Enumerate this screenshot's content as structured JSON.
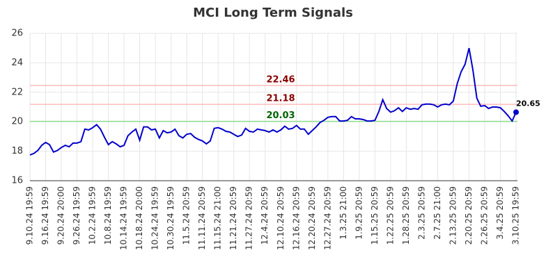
{
  "chart_data": {
    "type": "line",
    "title": "MCI Long Term Signals",
    "categories": [
      "9.10.24 19:59",
      null,
      null,
      null,
      "9.16.24 19:59",
      null,
      null,
      null,
      "9.20.24 20:00",
      null,
      null,
      null,
      "9.26.24 19:59",
      null,
      null,
      null,
      "10.2.24 19:59",
      null,
      null,
      null,
      "10.8.24 19:59",
      null,
      null,
      null,
      "10.14.24 19:59",
      null,
      null,
      null,
      "10.18.24 20:00",
      null,
      null,
      null,
      "10.24.24 19:59",
      null,
      null,
      null,
      "10.30.24 19:59",
      null,
      null,
      null,
      "11.5.24 20:59",
      null,
      null,
      null,
      "11.11.24 20:59",
      null,
      null,
      null,
      "11.15.24 21:00",
      null,
      null,
      null,
      "11.21.24 20:59",
      null,
      null,
      null,
      "11.27.24 20:59",
      null,
      null,
      null,
      "12.4.24 20:59",
      null,
      null,
      null,
      "12.10.24 20:59",
      null,
      null,
      null,
      "12.16.24 20:59",
      null,
      null,
      null,
      "12.20.24 20:59",
      null,
      null,
      null,
      "12.27.24 20:59",
      null,
      null,
      null,
      "1.3.25 21:00",
      null,
      null,
      null,
      "1.9.25 20:59",
      null,
      null,
      null,
      "1.15.25 20:59",
      null,
      null,
      null,
      "1.22.25 20:59",
      null,
      null,
      null,
      "1.28.25 20:59",
      null,
      null,
      null,
      "2.3.25 20:59",
      null,
      null,
      null,
      "2.7.25 21:00",
      null,
      null,
      null,
      "2.13.25 20:59",
      null,
      null,
      null,
      "2.20.25 20:59",
      null,
      null,
      null,
      "2.26.25 20:59",
      null,
      null,
      null,
      "3.4.25 20:59",
      null,
      null,
      null,
      "3.10.25 19:59"
    ],
    "series": [
      {
        "color": "#0000cc",
        "values": [
          17.75,
          17.85,
          18.05,
          18.4,
          18.6,
          18.45,
          17.95,
          18.05,
          18.25,
          18.4,
          18.3,
          18.55,
          18.55,
          18.65,
          19.5,
          19.45,
          19.6,
          19.8,
          19.5,
          18.95,
          18.45,
          18.65,
          18.5,
          18.3,
          18.4,
          19.05,
          19.3,
          19.5,
          18.75,
          19.65,
          19.65,
          19.45,
          19.5,
          18.9,
          19.4,
          19.25,
          19.3,
          19.5,
          19.05,
          18.9,
          19.15,
          19.2,
          18.95,
          18.8,
          18.7,
          18.5,
          18.7,
          19.55,
          19.6,
          19.5,
          19.35,
          19.3,
          19.15,
          19.0,
          19.1,
          19.55,
          19.35,
          19.3,
          19.5,
          19.45,
          19.4,
          19.3,
          19.45,
          19.3,
          19.45,
          19.7,
          19.5,
          19.55,
          19.75,
          19.5,
          19.5,
          19.15,
          19.4,
          19.65,
          19.95,
          20.1,
          20.3,
          20.35,
          20.35,
          20.05,
          20.05,
          20.1,
          20.35,
          20.2,
          20.2,
          20.15,
          20.05,
          20.05,
          20.1,
          20.7,
          21.5,
          20.9,
          20.65,
          20.75,
          20.95,
          20.7,
          20.95,
          20.85,
          20.9,
          20.85,
          21.15,
          21.2,
          21.2,
          21.15,
          21.0,
          21.15,
          21.2,
          21.15,
          21.4,
          22.6,
          23.4,
          23.9,
          25.0,
          23.5,
          21.6,
          21.05,
          21.1,
          20.9,
          21.0,
          21.0,
          20.95,
          20.7,
          20.4,
          20.05,
          20.65
        ]
      }
    ],
    "levels": [
      {
        "value": 22.46,
        "color": "#ffbbbb",
        "label_color": "#8b0000"
      },
      {
        "value": 21.18,
        "color": "#ffbbbb",
        "label_color": "#8b0000"
      },
      {
        "value": 20.03,
        "color": "#90e090",
        "label_color": "#006400"
      }
    ],
    "ylim": [
      16,
      26
    ],
    "yticks": [
      16,
      18,
      20,
      22,
      24,
      26
    ],
    "grid": true
  }
}
